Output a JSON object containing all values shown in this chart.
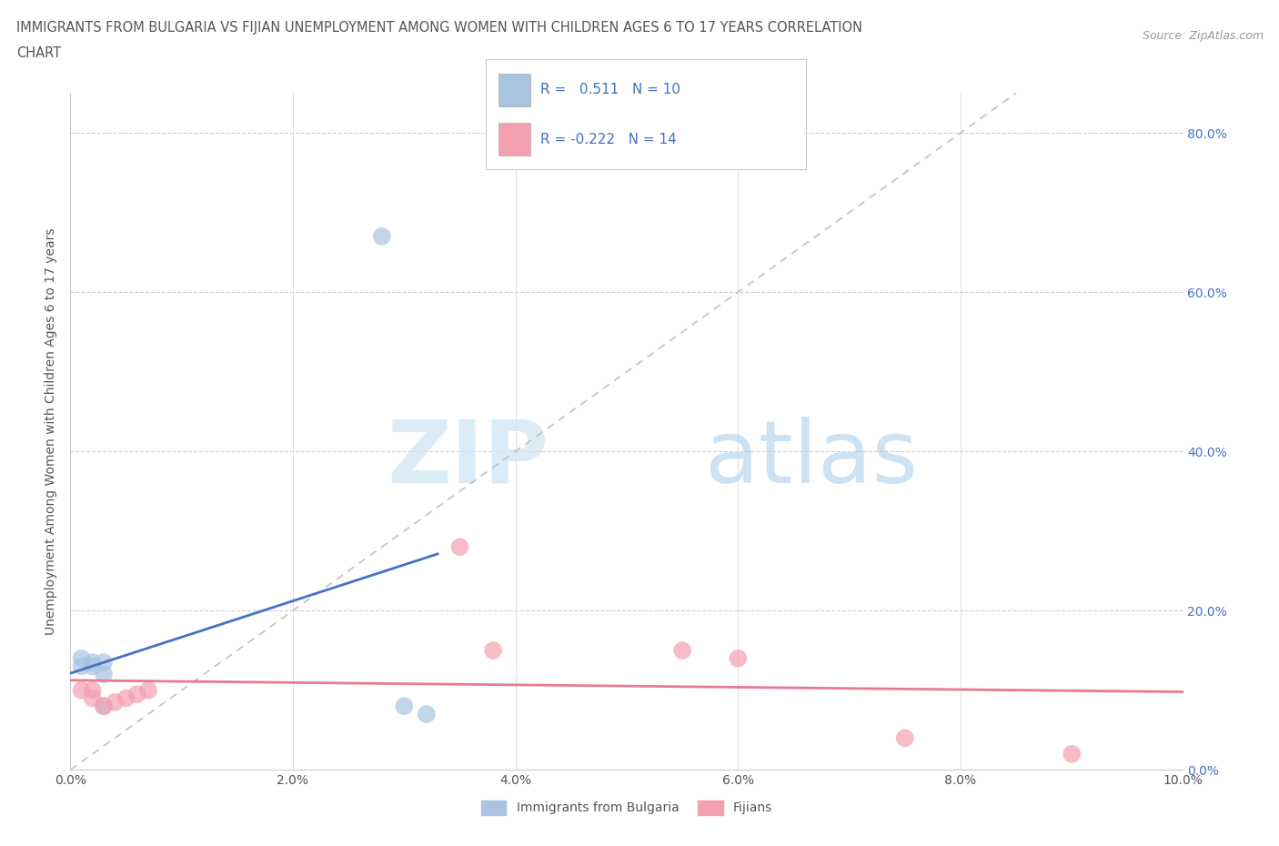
{
  "title_line1": "IMMIGRANTS FROM BULGARIA VS FIJIAN UNEMPLOYMENT AMONG WOMEN WITH CHILDREN AGES 6 TO 17 YEARS CORRELATION",
  "title_line2": "CHART",
  "source_text": "Source: ZipAtlas.com",
  "ylabel": "Unemployment Among Women with Children Ages 6 to 17 years",
  "xlim": [
    0.0,
    0.1
  ],
  "ylim": [
    0.0,
    0.85
  ],
  "yticks": [
    0.0,
    0.2,
    0.4,
    0.6,
    0.8
  ],
  "ytick_labels": [
    "0.0%",
    "20.0%",
    "40.0%",
    "60.0%",
    "80.0%"
  ],
  "xticks": [
    0.0,
    0.02,
    0.04,
    0.06,
    0.08,
    0.1
  ],
  "xtick_labels": [
    "0.0%",
    "2.0%",
    "4.0%",
    "6.0%",
    "8.0%",
    "10.0%"
  ],
  "bulgaria_x": [
    0.001,
    0.001,
    0.002,
    0.002,
    0.003,
    0.003,
    0.003,
    0.028,
    0.03,
    0.032
  ],
  "bulgaria_y": [
    0.13,
    0.14,
    0.13,
    0.135,
    0.135,
    0.12,
    0.08,
    0.67,
    0.08,
    0.07
  ],
  "fijian_x": [
    0.001,
    0.002,
    0.002,
    0.003,
    0.004,
    0.005,
    0.006,
    0.007,
    0.035,
    0.038,
    0.055,
    0.06,
    0.075,
    0.09
  ],
  "fijian_y": [
    0.1,
    0.09,
    0.1,
    0.08,
    0.085,
    0.09,
    0.095,
    0.1,
    0.28,
    0.15,
    0.15,
    0.14,
    0.04,
    0.02
  ],
  "bulgaria_color": "#a8c4e0",
  "fijian_color": "#f4a0b0",
  "bulgaria_line_color": "#4472c4",
  "fijian_line_color": "#e87a90",
  "diagonal_color": "#c0c0c0",
  "r_bulgaria": 0.511,
  "n_bulgaria": 10,
  "r_fijian": -0.222,
  "n_fijian": 14,
  "legend_label_bulgaria": "Immigrants from Bulgaria",
  "legend_label_fijian": "Fijians",
  "watermark_zip": "ZIP",
  "watermark_atlas": "atlas",
  "background_color": "#ffffff",
  "grid_color": "#d0d0d0",
  "text_color": "#4472c4",
  "title_color": "#555555"
}
